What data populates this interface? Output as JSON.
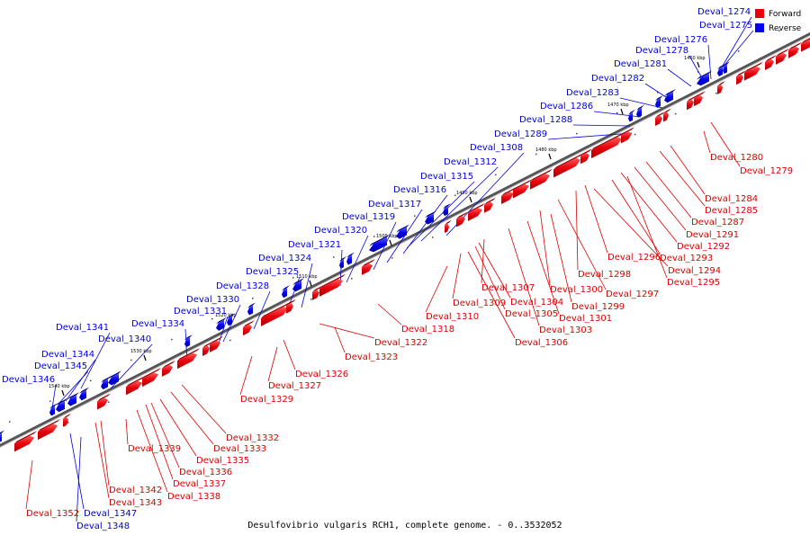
{
  "caption": "Desulfovibrio vulgaris RCH1, complete genome. - 0..3532052",
  "legend": {
    "forward_label": "Forward",
    "reverse_label": "Reverse",
    "forward_color": "#e8000b",
    "reverse_color": "#0000ee"
  },
  "colors": {
    "backbone": "#555555",
    "forward_leader": "#dd0000",
    "reverse_leader": "#0000dd"
  },
  "ruler_kbp": [
    "1460 kbp",
    "1470 kbp",
    "1480 kbp",
    "1490 kbp",
    "1500 kbp",
    "1510 kbp",
    "1520 kbp",
    "1530 kbp",
    "1540 kbp"
  ],
  "genes": {
    "reverse": [
      "Deval_1274",
      "Deval_1275",
      "Deval_1276",
      "Deval_1278",
      "Deval_1281",
      "Deval_1282",
      "Deval_1283",
      "Deval_1286",
      "Deval_1288",
      "Deval_1289",
      "Deval_1308",
      "Deval_1312",
      "Deval_1315",
      "Deval_1316",
      "Deval_1317",
      "Deval_1319",
      "Deval_1320",
      "Deval_1321",
      "Deval_1324",
      "Deval_1325",
      "Deval_1328",
      "Deval_1330",
      "Deval_1331",
      "Deval_1334",
      "Deval_1341",
      "Deval_1340",
      "Deval_1344",
      "Deval_1345",
      "Deval_1346",
      "Deval_1347",
      "Deval_1348"
    ],
    "forward": [
      "Deval_1280",
      "Deval_1279",
      "Deval_1284",
      "Deval_1285",
      "Deval_1287",
      "Deval_1291",
      "Deval_1292",
      "Deval_1293",
      "Deval_1296",
      "Deval_1294",
      "Deval_1295",
      "Deval_1298",
      "Deval_1297",
      "Deval_1300",
      "Deval_1299",
      "Deval_1301",
      "Deval_1303",
      "Deval_1307",
      "Deval_1304",
      "Deval_1305",
      "Deval_1306",
      "Deval_1309",
      "Deval_1310",
      "Deval_1318",
      "Deval_1322",
      "Deval_1323",
      "Deval_1326",
      "Deval_1327",
      "Deval_1329",
      "Deval_1332",
      "Deval_1333",
      "Deval_1335",
      "Deval_1336",
      "Deval_1337",
      "Deval_1338",
      "Deval_1339",
      "Deval_1342",
      "Deval_1343",
      "Deval_1352"
    ]
  }
}
